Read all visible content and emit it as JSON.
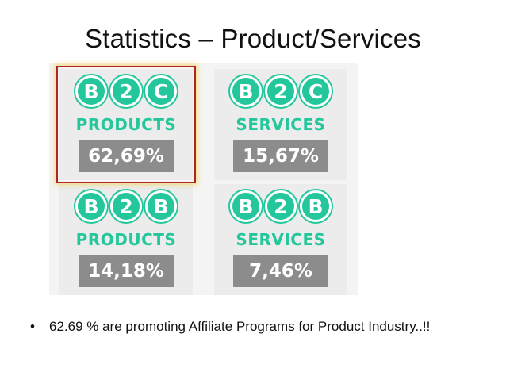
{
  "slide": {
    "title": "Statistics – Product/Services"
  },
  "tiles": [
    {
      "letters": [
        "B",
        "2",
        "C"
      ],
      "type": "PRODUCTS",
      "percentage": "62,69%",
      "highlighted": true
    },
    {
      "letters": [
        "B",
        "2",
        "C"
      ],
      "type": "SERVICES",
      "percentage": "15,67%",
      "highlighted": false
    },
    {
      "letters": [
        "B",
        "2",
        "B"
      ],
      "type": "PRODUCTS",
      "percentage": "14,18%",
      "highlighted": false
    },
    {
      "letters": [
        "B",
        "2",
        "B"
      ],
      "type": "SERVICES",
      "percentage": "7,46%",
      "highlighted": false
    }
  ],
  "bullets": [
    {
      "marker": "•",
      "text": "62.69 % are promoting Affiliate Programs for Product Industry..!!"
    }
  ],
  "colors": {
    "accent_green": "#24c79c",
    "percent_box": "#8c8c8c",
    "highlight_border": "#b3231f",
    "highlight_glow": "#f0c828"
  }
}
